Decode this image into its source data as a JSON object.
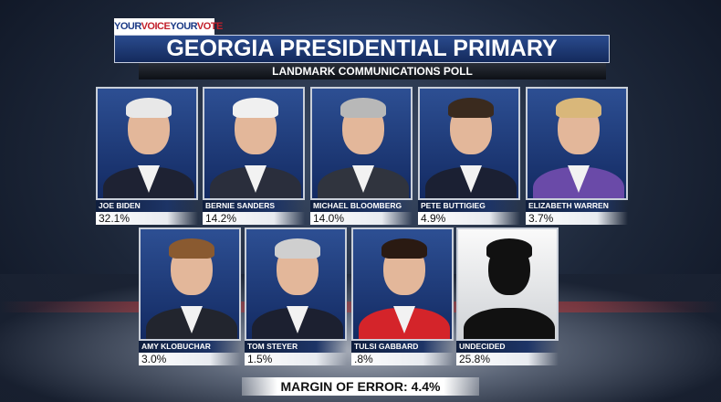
{
  "brand_tag": {
    "part1": "YOUR",
    "part2": "VOICE",
    "part3": "YOUR",
    "part4": "VOTE"
  },
  "title": "GEORGIA PRESIDENTIAL PRIMARY",
  "subtitle": "LANDMARK COMMUNICATIONS POLL",
  "candidates": [
    {
      "name": "JOE BIDEN",
      "pct": "32.1%",
      "hair": "#e8e8e8",
      "body": "#1e2233"
    },
    {
      "name": "BERNIE SANDERS",
      "pct": "14.2%",
      "hair": "#f0f0f0",
      "body": "#2a2e3c"
    },
    {
      "name": "MICHAEL BLOOMBERG",
      "pct": "14.0%",
      "hair": "#b8b8b8",
      "body": "#30343e"
    },
    {
      "name": "PETE BUTTIGIEG",
      "pct": "4.9%",
      "hair": "#3a2a1e",
      "body": "#1b2033"
    },
    {
      "name": "ELIZABETH WARREN",
      "pct": "3.7%",
      "hair": "#d9b77a",
      "body": "#6a4aa8"
    },
    {
      "name": "AMY KLOBUCHAR",
      "pct": "3.0%",
      "hair": "#8a5a30",
      "body": "#22252e"
    },
    {
      "name": "TOM STEYER",
      "pct": "1.5%",
      "hair": "#cfcfcf",
      "body": "#1c2030"
    },
    {
      "name": "TULSI GABBARD",
      "pct": ".8%",
      "hair": "#2a1a12",
      "body": "#d4242a"
    },
    {
      "name": "UNDECIDED",
      "pct": "25.8%",
      "hair": "#111111",
      "body": "#111111"
    }
  ],
  "margin_of_error": "MARGIN OF ERROR: 4.4%"
}
